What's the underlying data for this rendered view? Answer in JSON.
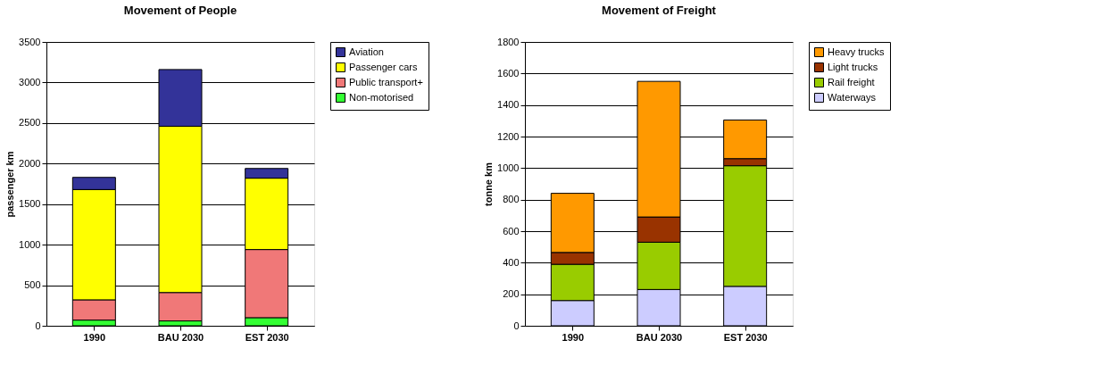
{
  "chart_data": [
    {
      "type": "bar",
      "title": "Movement of People",
      "ylabel": "passenger km",
      "categories": [
        "1990",
        "BAU 2030",
        "EST 2030"
      ],
      "stacked": true,
      "ylim": [
        0,
        3500
      ],
      "yticks": [
        0,
        500,
        1000,
        1500,
        2000,
        2500,
        3000,
        3500
      ],
      "grid": "y",
      "legend": "right",
      "series": [
        {
          "name": "Non-motorised",
          "color": "#33ff33",
          "values": [
            70,
            60,
            100
          ]
        },
        {
          "name": "Public transport+",
          "color": "#f07878",
          "values": [
            250,
            350,
            840
          ]
        },
        {
          "name": "Passenger cars",
          "color": "#ffff00",
          "values": [
            1360,
            2050,
            880
          ]
        },
        {
          "name": "Aviation",
          "color": "#333399",
          "values": [
            150,
            700,
            120
          ]
        }
      ]
    },
    {
      "type": "bar",
      "title": "Movement of Freight",
      "ylabel": "tonne km",
      "categories": [
        "1990",
        "BAU 2030",
        "EST 2030"
      ],
      "stacked": true,
      "ylim": [
        0,
        1800
      ],
      "yticks": [
        0,
        200,
        400,
        600,
        800,
        1000,
        1200,
        1400,
        1600,
        1800
      ],
      "grid": "y",
      "legend": "right",
      "series": [
        {
          "name": "Waterways",
          "color": "#ccccff",
          "values": [
            160,
            230,
            250
          ]
        },
        {
          "name": "Rail freight",
          "color": "#99cc00",
          "values": [
            230,
            300,
            765
          ]
        },
        {
          "name": "Light trucks",
          "color": "#993300",
          "values": [
            75,
            160,
            45
          ]
        },
        {
          "name": "Heavy trucks",
          "color": "#ff9900",
          "values": [
            375,
            860,
            245
          ]
        }
      ]
    }
  ]
}
